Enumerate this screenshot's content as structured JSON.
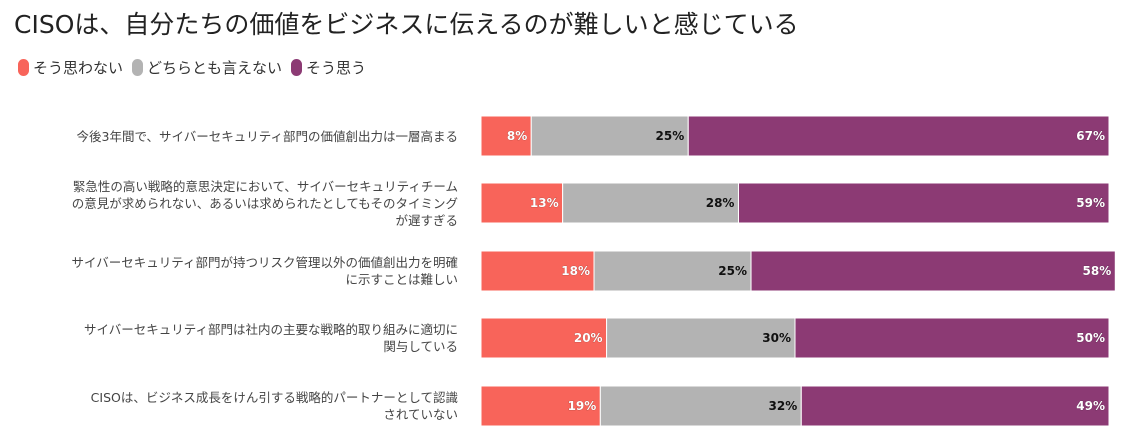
{
  "title": "CISOは、自分たちの価値をビジネスに伝えるのが難しいと感じている",
  "legend": [
    {
      "label": "そう思わない",
      "color": "#f8645a"
    },
    {
      "label": "どちらとも言えない",
      "color": "#b3b3b3"
    },
    {
      "label": "そう思う",
      "color": "#8c3a74"
    }
  ],
  "chart_data": {
    "type": "bar",
    "orientation": "horizontal",
    "stacked": true,
    "percent_stacked": true,
    "categories": [
      [
        "今後3年間で、サイバーセキュリティ部門の価値創出力は一層高まる"
      ],
      [
        "緊急性の高い戦略的意思決定において、サイバーセキュリティチーム",
        "の意見が求められない、あるいは求められたとしてもそのタイミング",
        "が遅すぎる"
      ],
      [
        "サイバーセキュリティ部門が持つリスク管理以外の価値創出力を明確",
        "に示すことは難しい"
      ],
      [
        "サイバーセキュリティ部門は社内の主要な戦略的取り組みに適切に",
        "関与している"
      ],
      [
        "CISOは、ビジネス成長をけん引する戦略的パートナーとして認識",
        "されていない"
      ]
    ],
    "series": [
      {
        "name": "そう思わない",
        "values": [
          8,
          13,
          18,
          20,
          19
        ],
        "labels": [
          "8%",
          "13%",
          "18%",
          "20%",
          "19%"
        ],
        "color": "#f8645a"
      },
      {
        "name": "どちらとも言えない",
        "values": [
          25,
          28,
          25,
          30,
          32
        ],
        "labels": [
          "25%",
          "28%",
          "25%",
          "30%",
          "32%"
        ],
        "color": "#b3b3b3"
      },
      {
        "name": "そう思う",
        "values": [
          67,
          59,
          58,
          50,
          49
        ],
        "labels": [
          "67%",
          "59%",
          "58%",
          "50%",
          "49%"
        ],
        "color": "#8c3a74"
      }
    ],
    "xlim": [
      0,
      100
    ],
    "grid": false,
    "legend_position": "top-left"
  }
}
